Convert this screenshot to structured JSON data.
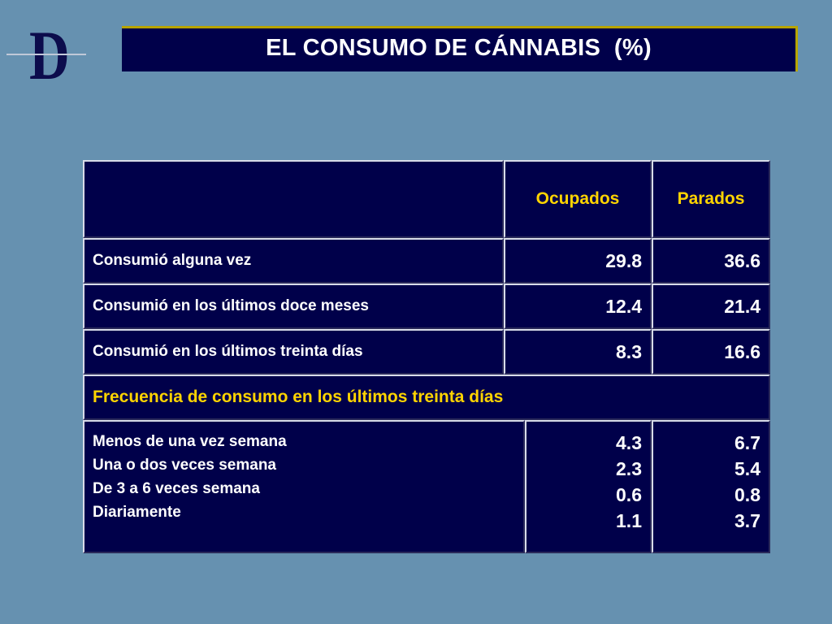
{
  "logo": {
    "letter": "D"
  },
  "title": "EL CONSUMO DE CÁNNABIS  (%)",
  "table": {
    "columns": [
      "Ocupados",
      "Parados"
    ],
    "rows": [
      {
        "label": "Consumió alguna vez",
        "ocupados": "29.8",
        "parados": "36.6"
      },
      {
        "label": "Consumió en los últimos doce meses",
        "ocupados": "12.4",
        "parados": "21.4"
      },
      {
        "label": "Consumió en los últimos treinta días",
        "ocupados": "8.3",
        "parados": "16.6"
      }
    ],
    "section_heading": "Frecuencia de consumo en los últimos treinta días",
    "frequency": [
      {
        "label": "Menos de una vez semana",
        "ocupados": "4.3",
        "parados": "6.7"
      },
      {
        "label": "Una o dos veces semana",
        "ocupados": "2.3",
        "parados": "5.4"
      },
      {
        "label": "De 3 a 6 veces semana",
        "ocupados": "0.6",
        "parados": "0.8"
      },
      {
        "label": "Diariamente",
        "ocupados": "1.1",
        "parados": "3.7"
      }
    ]
  },
  "colors": {
    "background": "#6691b0",
    "cell": "#00004a",
    "header_text": "#ffd400",
    "title_accent": "#b8a400"
  }
}
